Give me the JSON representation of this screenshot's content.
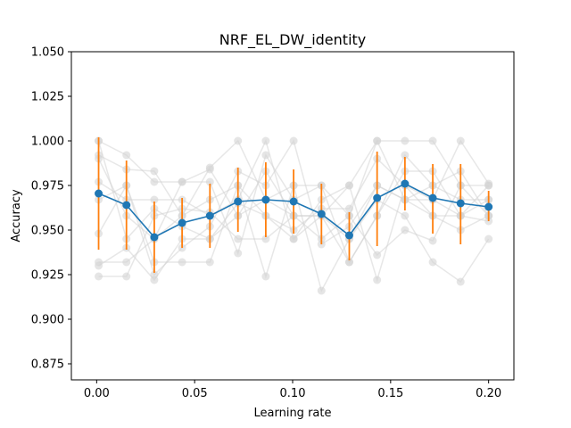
{
  "chart_data": {
    "type": "line",
    "title": "NRF_EL_DW_identity",
    "xlabel": "Learning rate",
    "ylabel": "Accuracy",
    "xlim": [
      -0.0129,
      0.2129
    ],
    "ylim": [
      0.866,
      1.05
    ],
    "xticks": [
      0.0,
      0.05,
      0.1,
      0.15,
      0.2
    ],
    "xtick_labels": [
      "0.00",
      "0.05",
      "0.10",
      "0.15",
      "0.20"
    ],
    "yticks": [
      0.875,
      0.9,
      0.925,
      0.95,
      0.975,
      1.0,
      1.025,
      1.05
    ],
    "ytick_labels": [
      "0.875",
      "0.900",
      "0.925",
      "0.950",
      "0.975",
      "1.000",
      "1.025",
      "1.050"
    ],
    "grid": false,
    "x": [
      0.001,
      0.0152,
      0.0294,
      0.0436,
      0.0578,
      0.0721,
      0.0863,
      0.1005,
      0.1147,
      0.1289,
      0.1431,
      0.1573,
      0.1715,
      0.1857,
      0.2
    ],
    "mean": {
      "values": [
        0.9705,
        0.964,
        0.946,
        0.954,
        0.958,
        0.966,
        0.967,
        0.966,
        0.959,
        0.947,
        0.968,
        0.976,
        0.968,
        0.965,
        0.963
      ],
      "color": "#1f77b4"
    },
    "error_bars": {
      "lower": [
        0.939,
        0.939,
        0.926,
        0.94,
        0.94,
        0.949,
        0.946,
        0.948,
        0.942,
        0.933,
        0.941,
        0.961,
        0.948,
        0.942,
        0.955
      ],
      "upper": [
        1.002,
        0.989,
        0.966,
        0.968,
        0.976,
        0.985,
        0.988,
        0.984,
        0.976,
        0.96,
        0.994,
        0.991,
        0.987,
        0.987,
        0.972
      ],
      "color": "#ff7f0e"
    },
    "runs": {
      "color": "#d3d3d3",
      "series": [
        {
          "values": [
            1.0,
            0.992,
            0.977,
            0.977,
            0.984,
            0.958,
            0.967,
            0.975,
            0.975,
            0.958,
            1.0,
            0.967,
            0.967,
            0.958,
            0.975
          ]
        },
        {
          "values": [
            0.992,
            0.984,
            0.983,
            0.958,
            0.985,
            1.0,
            0.967,
            0.958,
            0.958,
            0.975,
            1.0,
            1.0,
            1.0,
            0.975,
            0.958
          ]
        },
        {
          "values": [
            0.977,
            0.967,
            0.967,
            0.967,
            0.958,
            0.967,
            1.0,
            0.945,
            0.967,
            0.975,
            0.922,
            0.975,
            0.967,
            1.0,
            0.976
          ]
        },
        {
          "values": [
            0.948,
            0.975,
            0.932,
            0.932,
            0.932,
            0.975,
            0.924,
            0.975,
            0.916,
            0.945,
            0.967,
            0.958,
            0.932,
            0.921,
            0.945
          ]
        },
        {
          "values": [
            0.932,
            0.932,
            0.945,
            0.977,
            0.977,
            0.937,
            0.992,
            0.967,
            0.975,
            0.932,
            0.958,
            0.992,
            0.975,
            0.967,
            0.967
          ]
        },
        {
          "values": [
            0.93,
            0.94,
            0.922,
            0.945,
            0.945,
            0.958,
            0.983,
            0.958,
            0.945,
            0.958,
            0.936,
            0.95,
            0.944,
            0.975,
            0.975
          ]
        },
        {
          "values": [
            0.924,
            0.924,
            0.958,
            0.962,
            0.96,
            0.945,
            0.945,
            0.958,
            0.958,
            0.945,
            0.975,
            0.967,
            0.958,
            0.958,
            0.955
          ]
        },
        {
          "values": [
            0.99,
            0.958,
            0.945,
            0.958,
            0.967,
            0.975,
            0.958,
            0.945,
            0.958,
            0.932,
            0.958,
            0.983,
            0.983,
            0.958,
            0.967
          ]
        },
        {
          "values": [
            0.967,
            0.975,
            0.925,
            0.94,
            0.952,
            0.983,
            0.975,
            1.0,
            0.942,
            0.952,
            0.975,
            0.967,
            0.975,
            0.983,
            0.958
          ]
        },
        {
          "values": [
            1.0,
            0.945,
            0.962,
            0.952,
            0.945,
            0.965,
            0.958,
            0.95,
            0.962,
            0.962,
            0.99,
            0.975,
            0.958,
            0.95,
            0.958
          ]
        }
      ]
    }
  }
}
